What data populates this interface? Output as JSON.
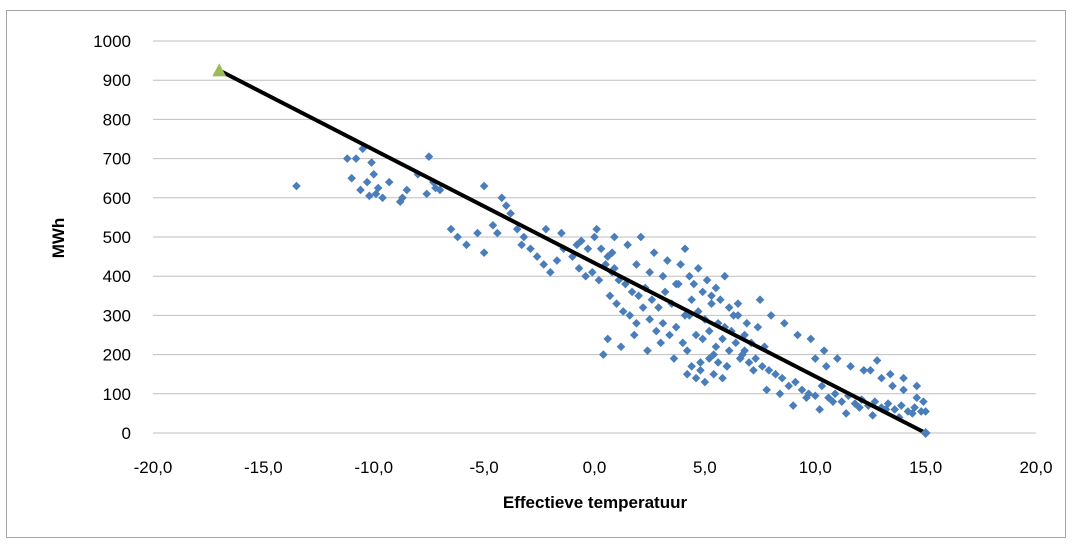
{
  "chart_data": {
    "type": "scatter",
    "xlabel": "Effectieve temperatuur",
    "ylabel": "MWh",
    "xlim": [
      -20,
      20
    ],
    "ylim": [
      0,
      1000
    ],
    "x_ticks": [
      "-20,0",
      "-15,0",
      "-10,0",
      "-5,0",
      "0,0",
      "5,0",
      "10,0",
      "15,0",
      "20,0"
    ],
    "y_ticks": [
      "0",
      "100",
      "200",
      "300",
      "400",
      "500",
      "600",
      "700",
      "800",
      "900",
      "1000"
    ],
    "grid": "horizontal",
    "legend": "none",
    "colors": {
      "points": "#4a7ebb",
      "trendline": "#000000",
      "marker": "#9bbb59",
      "grid": "#bfbfbf"
    },
    "trendline": {
      "x": [
        -17,
        15
      ],
      "y": [
        925,
        0
      ]
    },
    "highlight_points": [
      {
        "x": -17,
        "y": 925,
        "marker": "triangle"
      },
      {
        "x": 15,
        "y": 0,
        "marker": "diamond"
      }
    ],
    "series": [
      {
        "marker": "diamond",
        "x": [
          -13.5,
          -11.0,
          -10.8,
          -10.5,
          -10.3,
          -10.1,
          -10.0,
          -9.9,
          -9.6,
          -9.3,
          -8.8,
          -8.5,
          -8.0,
          -7.5,
          -7.3,
          -7.0,
          -7.2,
          -11.2,
          -10.6,
          -10.2,
          -9.8,
          -8.7,
          -7.6,
          -6.5,
          -6.2,
          -5.8,
          -5.3,
          -5.0,
          -4.6,
          -4.2,
          -4.0,
          -3.8,
          -3.5,
          -3.2,
          -2.9,
          -2.6,
          -2.3,
          -2.0,
          -1.7,
          -1.4,
          -1.0,
          -0.7,
          -0.4,
          -0.1,
          0.2,
          -5.0,
          -4.4,
          -3.3,
          -2.2,
          -1.5,
          -0.8,
          0.0,
          0.3,
          0.6,
          0.9,
          0.5,
          0.8,
          1.1,
          1.4,
          1.7,
          2.0,
          2.3,
          2.6,
          2.9,
          3.2,
          3.5,
          3.8,
          4.1,
          4.4,
          4.7,
          5.0,
          5.3,
          5.6,
          5.9,
          6.2,
          6.5,
          6.8,
          7.1,
          7.4,
          7.7,
          0.7,
          1.0,
          1.3,
          1.6,
          1.9,
          2.2,
          2.5,
          2.8,
          3.1,
          3.4,
          3.7,
          4.0,
          4.3,
          4.6,
          4.9,
          5.2,
          5.5,
          5.8,
          6.1,
          6.4,
          6.7,
          0.4,
          0.6,
          1.2,
          1.8,
          2.4,
          3.0,
          3.6,
          4.2,
          4.8,
          5.4,
          6.0,
          6.6,
          7.2,
          3.9,
          4.1,
          4.3,
          4.5,
          4.7,
          4.9,
          5.1,
          5.3,
          5.5,
          5.7,
          5.9,
          6.1,
          6.3,
          6.5,
          6.9,
          4.2,
          4.4,
          4.6,
          4.8,
          5.0,
          5.2,
          5.4,
          5.6,
          5.8,
          6.0,
          6.8,
          7.0,
          7.3,
          7.6,
          7.9,
          8.2,
          8.5,
          8.8,
          9.1,
          9.4,
          9.7,
          10.0,
          10.3,
          10.6,
          10.9,
          11.2,
          11.5,
          11.8,
          12.1,
          12.4,
          12.7,
          13.0,
          13.3,
          13.6,
          13.9,
          14.2,
          14.5,
          14.8,
          7.5,
          8.0,
          8.6,
          9.2,
          9.8,
          10.4,
          11.0,
          11.6,
          12.2,
          12.8,
          13.4,
          14.0,
          14.6,
          7.8,
          8.4,
          9.0,
          9.6,
          10.2,
          10.8,
          11.4,
          12.0,
          12.6,
          13.2,
          13.8,
          14.4,
          15.0,
          10.0,
          10.5,
          12.5,
          13.0,
          13.5,
          14.0,
          14.6,
          14.9,
          2.1,
          2.7,
          3.3,
          1.5,
          0.9,
          0.1,
          -0.3,
          -0.6,
          0.8,
          1.9,
          2.5,
          3.1,
          3.7
        ],
        "y": [
          630,
          650,
          700,
          725,
          640,
          690,
          660,
          610,
          600,
          640,
          590,
          620,
          660,
          705,
          640,
          620,
          625,
          700,
          620,
          605,
          625,
          600,
          610,
          520,
          500,
          480,
          510,
          460,
          530,
          600,
          580,
          560,
          520,
          500,
          470,
          450,
          430,
          410,
          440,
          470,
          450,
          420,
          400,
          410,
          390,
          630,
          510,
          480,
          520,
          510,
          480,
          500,
          470,
          450,
          420,
          430,
          410,
          390,
          380,
          360,
          350,
          370,
          340,
          320,
          360,
          330,
          380,
          300,
          340,
          310,
          290,
          330,
          280,
          270,
          260,
          300,
          250,
          230,
          270,
          220,
          350,
          330,
          310,
          300,
          280,
          320,
          290,
          260,
          280,
          250,
          270,
          230,
          300,
          250,
          240,
          260,
          220,
          240,
          210,
          230,
          200,
          200,
          240,
          220,
          250,
          210,
          230,
          190,
          210,
          180,
          200,
          170,
          190,
          160,
          430,
          470,
          400,
          380,
          420,
          360,
          390,
          350,
          370,
          340,
          400,
          320,
          300,
          330,
          280,
          150,
          170,
          140,
          160,
          130,
          190,
          150,
          180,
          140,
          170,
          210,
          180,
          190,
          170,
          160,
          150,
          140,
          120,
          130,
          110,
          100,
          95,
          120,
          90,
          100,
          80,
          95,
          75,
          85,
          70,
          80,
          65,
          75,
          60,
          70,
          55,
          65,
          55,
          340,
          300,
          280,
          250,
          240,
          210,
          190,
          170,
          160,
          185,
          150,
          140,
          120,
          110,
          100,
          70,
          90,
          60,
          80,
          50,
          65,
          45,
          60,
          40,
          50,
          55,
          190,
          170,
          160,
          140,
          120,
          110,
          90,
          80,
          500,
          460,
          440,
          480,
          500,
          520,
          470,
          490,
          460,
          430,
          410,
          400,
          380
        ]
      }
    ]
  }
}
